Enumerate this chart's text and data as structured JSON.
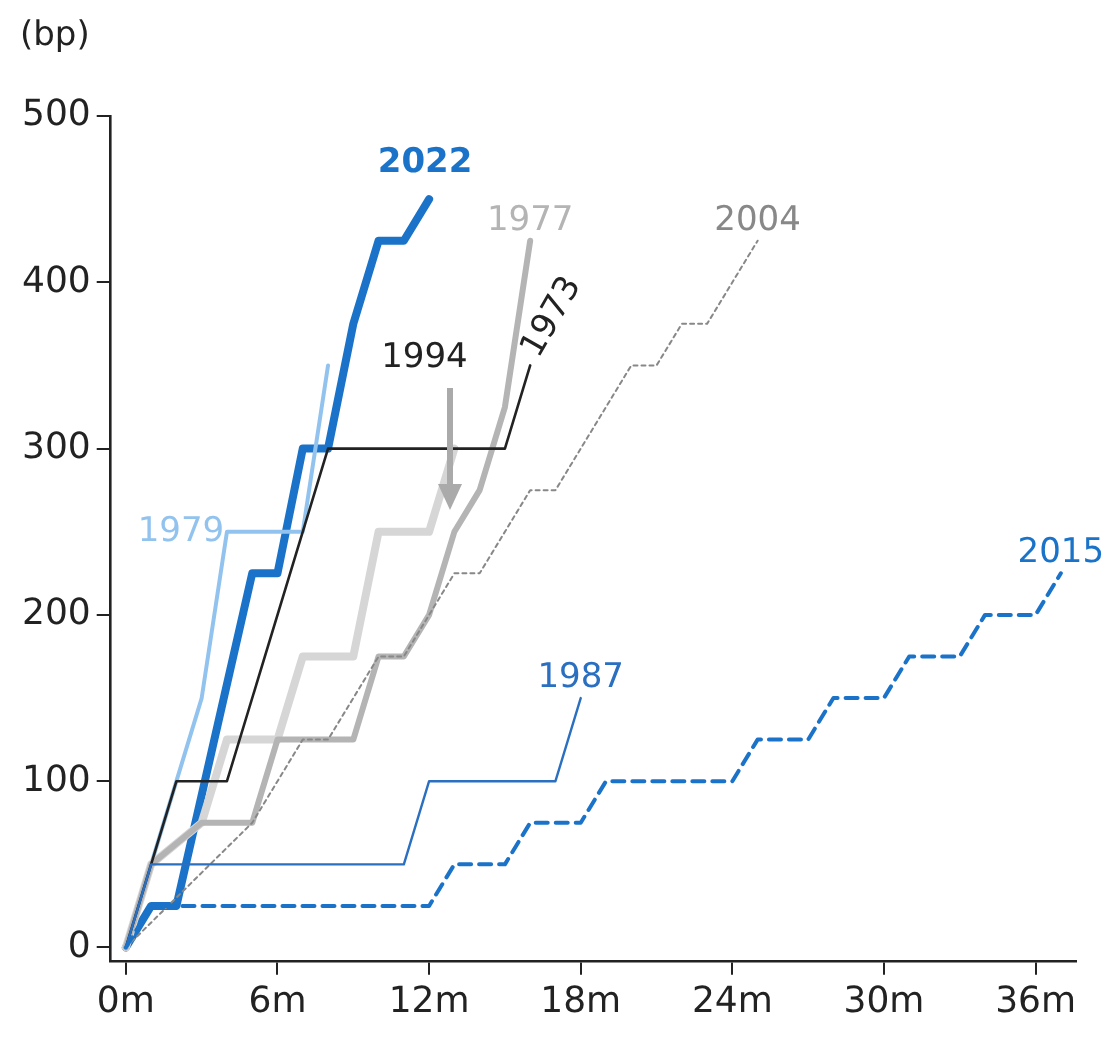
{
  "chart_data": {
    "type": "line",
    "ylabel": "(bp)",
    "xlim": [
      -0.6,
      37.6
    ],
    "xticks": [
      {
        "value": 0,
        "label": "0m"
      },
      {
        "value": 6,
        "label": "6m"
      },
      {
        "value": 12,
        "label": "12m"
      },
      {
        "value": 18,
        "label": "18m"
      },
      {
        "value": 24,
        "label": "24m"
      },
      {
        "value": 30,
        "label": "30m"
      },
      {
        "value": 36,
        "label": "36m"
      }
    ],
    "ylim": [
      -8,
      500
    ],
    "yticks": [
      0,
      100,
      200,
      300,
      400,
      500
    ],
    "grid": false,
    "legend": false,
    "marker": "none",
    "series": [
      {
        "name": "2015",
        "color": "#1a73c8",
        "line_style": "dashed",
        "x": [
          0,
          1,
          12,
          13,
          15,
          16,
          18,
          19,
          24,
          25,
          27,
          28,
          30,
          31,
          33,
          34,
          36,
          37
        ],
        "values": [
          0,
          25,
          25,
          50,
          50,
          75,
          75,
          100,
          100,
          125,
          125,
          150,
          150,
          175,
          175,
          200,
          200,
          225
        ]
      },
      {
        "name": "1987",
        "color": "#2a6fc0",
        "line_style": "solid",
        "x": [
          0,
          1,
          11,
          12,
          17,
          18
        ],
        "values": [
          0,
          50,
          50,
          100,
          100,
          150
        ]
      },
      {
        "name": "2004",
        "color": "#888888",
        "line_style": "dotted",
        "x": [
          0,
          5,
          7,
          8,
          10,
          11,
          12,
          13,
          14,
          16,
          17,
          20,
          21,
          22,
          23,
          25
        ],
        "values": [
          0,
          75,
          125,
          125,
          175,
          175,
          200,
          225,
          225,
          275,
          275,
          350,
          350,
          375,
          375,
          425
        ]
      },
      {
        "name": "1973",
        "color": "#222222",
        "line_style": "solid",
        "x": [
          0,
          2,
          4,
          8,
          15,
          16
        ],
        "values": [
          0,
          100,
          100,
          300,
          300,
          350
        ]
      },
      {
        "name": "1977",
        "color": "#b4b4b4",
        "line_style": "solid",
        "x": [
          0,
          1,
          3,
          5,
          6,
          9,
          10,
          11,
          12,
          13,
          14,
          15,
          16
        ],
        "values": [
          0,
          50,
          75,
          75,
          125,
          125,
          175,
          175,
          200,
          250,
          275,
          325,
          425
        ]
      },
      {
        "name": "1994",
        "color": "#d6d6d6",
        "line_style": "solid",
        "x": [
          0,
          1,
          3,
          4,
          6,
          7,
          9,
          10,
          12,
          13
        ],
        "values": [
          0,
          50,
          75,
          125,
          125,
          175,
          175,
          250,
          250,
          300
        ]
      },
      {
        "name": "1979",
        "color": "#92c3ee",
        "line_style": "solid",
        "x": [
          0,
          1,
          2,
          3,
          4,
          7,
          8
        ],
        "values": [
          0,
          50,
          100,
          150,
          250,
          250,
          350
        ]
      },
      {
        "name": "2022",
        "color": "#1a73c8",
        "line_style": "solid",
        "x": [
          0,
          1,
          2,
          5,
          6,
          7,
          8,
          9,
          10,
          11,
          12
        ],
        "values": [
          0,
          25,
          25,
          225,
          225,
          300,
          300,
          375,
          425,
          425,
          450
        ]
      }
    ]
  }
}
